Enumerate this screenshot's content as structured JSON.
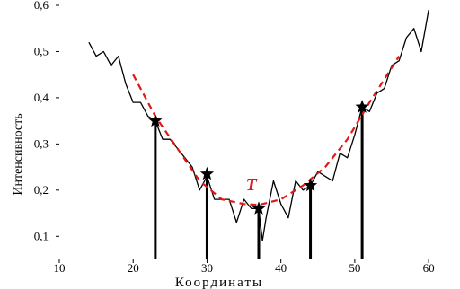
{
  "chart_data": {
    "type": "line",
    "xlabel": "Координаты",
    "ylabel": "Интенсивность",
    "xlim": [
      10,
      64
    ],
    "ylim": [
      0.05,
      0.6
    ],
    "xticks": [
      10,
      20,
      30,
      40,
      50,
      60
    ],
    "xtick_labels": [
      "10",
      "20",
      "30",
      "40",
      "50",
      "60"
    ],
    "yticks": [
      0.1,
      0.2,
      0.3,
      0.4,
      0.5,
      0.6
    ],
    "ytick_labels": [
      "0,1",
      "0,2",
      "0,3",
      "0,4",
      "0,5",
      "0,6"
    ],
    "grid": false,
    "series": [
      {
        "style": "solid",
        "color": "#000000",
        "x": [
          14,
          15,
          16,
          17,
          18,
          19,
          20,
          21,
          22,
          23,
          24,
          25,
          26,
          27,
          28,
          29,
          30,
          31,
          32,
          33,
          34,
          35,
          36,
          37,
          37.5,
          38,
          39,
          40,
          41,
          42,
          43,
          44,
          45,
          46,
          47,
          48,
          49,
          50,
          51,
          52,
          53,
          54,
          55,
          56,
          57,
          58,
          59,
          60
        ],
        "y": [
          0.52,
          0.49,
          0.5,
          0.47,
          0.49,
          0.43,
          0.39,
          0.39,
          0.36,
          0.35,
          0.31,
          0.31,
          0.29,
          0.27,
          0.25,
          0.2,
          0.23,
          0.18,
          0.18,
          0.18,
          0.13,
          0.18,
          0.16,
          0.16,
          0.09,
          0.14,
          0.22,
          0.17,
          0.14,
          0.22,
          0.2,
          0.21,
          0.24,
          0.23,
          0.22,
          0.28,
          0.27,
          0.32,
          0.38,
          0.37,
          0.41,
          0.42,
          0.47,
          0.48,
          0.53,
          0.55,
          0.5,
          0.59
        ]
      },
      {
        "style": "dashed",
        "color": "#e01818",
        "x": [
          20,
          23,
          26,
          29,
          32,
          35,
          37,
          40,
          43,
          46,
          49,
          52,
          56
        ],
        "y": [
          0.45,
          0.36,
          0.29,
          0.22,
          0.18,
          0.17,
          0.168,
          0.18,
          0.21,
          0.25,
          0.31,
          0.39,
          0.49
        ]
      }
    ],
    "markers": {
      "shape": "star",
      "x": [
        23,
        30,
        37,
        44,
        51
      ],
      "y": [
        0.35,
        0.235,
        0.16,
        0.21,
        0.38
      ]
    },
    "annotations": [
      {
        "text": "T",
        "x": 36,
        "y": 0.2,
        "color": "#e01818"
      }
    ]
  }
}
